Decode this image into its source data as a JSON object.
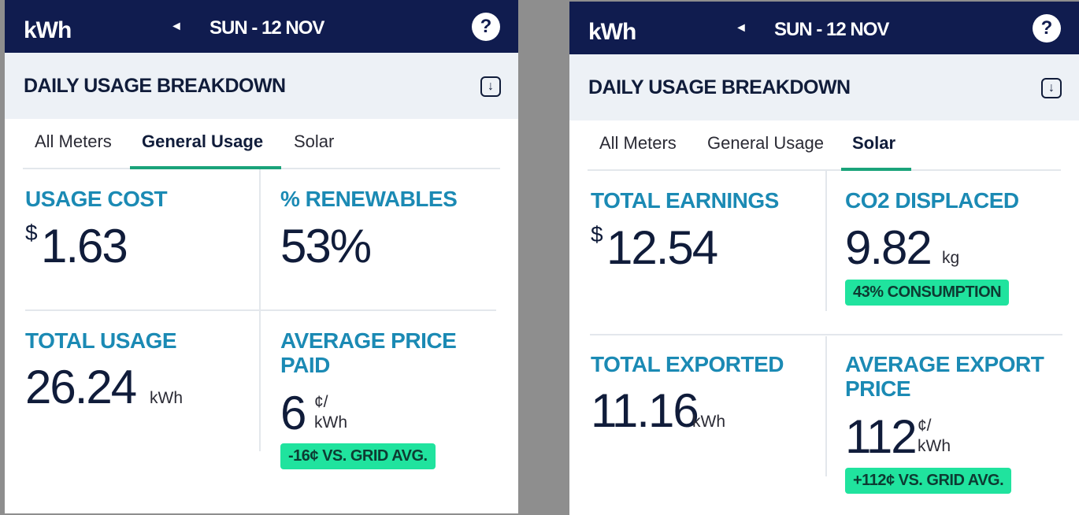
{
  "left": {
    "unit_label": "kWh",
    "prev_arrow": "◄",
    "date": "SUN - 12 NOV",
    "help": "?",
    "section_title": "DAILY USAGE BREAKDOWN",
    "download_icon": "↓",
    "tabs": [
      {
        "label": "All Meters",
        "active": false
      },
      {
        "label": "General Usage",
        "active": true
      },
      {
        "label": "Solar",
        "active": false
      }
    ],
    "cards": {
      "usage_cost": {
        "label": "USAGE COST",
        "currency": "$",
        "value": "1.63"
      },
      "renewables": {
        "label": "% RENEWABLES",
        "value": "53%"
      },
      "total_usage": {
        "label": "TOTAL USAGE",
        "value": "26.24",
        "unit": "kWh"
      },
      "avg_price": {
        "label_line1": "AVERAGE PRICE",
        "label_line2": "PAID",
        "value": "6",
        "unit_line1": "¢/",
        "unit_line2": "kWh",
        "badge": "-16¢ VS. GRID AVG."
      }
    }
  },
  "right": {
    "unit_label": "kWh",
    "prev_arrow": "◄",
    "date": "SUN - 12 NOV",
    "help": "?",
    "section_title": "DAILY USAGE BREAKDOWN",
    "download_icon": "↓",
    "tabs": [
      {
        "label": "All Meters",
        "active": false
      },
      {
        "label": "General Usage",
        "active": false
      },
      {
        "label": "Solar",
        "active": true
      }
    ],
    "cards": {
      "total_earnings": {
        "label": "TOTAL EARNINGS",
        "currency": "$",
        "value": "12.54"
      },
      "co2": {
        "label": "CO2 DISPLACED",
        "value": "9.82",
        "unit": "kg",
        "badge": "43% CONSUMPTION"
      },
      "total_exported": {
        "label": "TOTAL EXPORTED",
        "value": "11.16",
        "unit": "kWh"
      },
      "avg_export": {
        "label_line1": "AVERAGE EXPORT",
        "label_line2": "PRICE",
        "value": "112",
        "unit_line1": "¢/",
        "unit_line2": "kWh",
        "badge": "+112¢ VS. GRID AVG."
      }
    }
  },
  "colors": {
    "navy": "#101c4f",
    "accent_blue": "#1b8ab4",
    "tab_underline": "#1aa37a",
    "badge_green": "#20e39e"
  }
}
